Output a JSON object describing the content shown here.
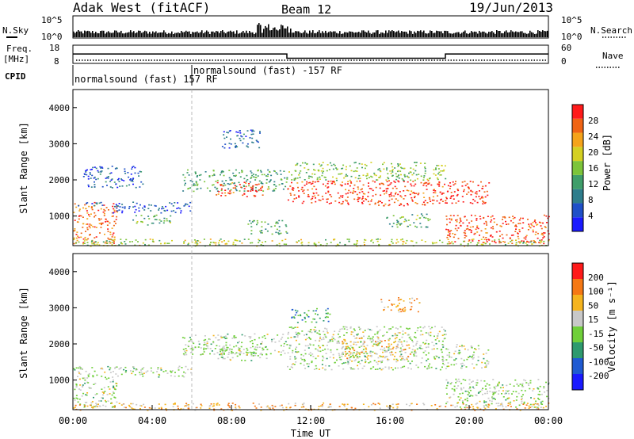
{
  "header": {
    "station": "Adak West (fitACF)",
    "beam": "Beam 12",
    "date": "19/Jun/2013"
  },
  "summary_panel": {
    "nsky_label": "N.Sky",
    "nsky_ticks": [
      "10^5",
      "10^0"
    ],
    "nsearch_label": "N.Search",
    "nsearch_ticks": [
      "10^5",
      "10^0"
    ],
    "freq_label_1": "Freq.",
    "freq_label_2": "[MHz]",
    "freq_ticks": [
      "18",
      "8"
    ],
    "nave_label": "Nave",
    "nave_ticks": [
      "60",
      "0"
    ],
    "cpid_label": "CPID",
    "cpid_segments": [
      {
        "label": "normalsound (fast) 157 RF",
        "start_hour": 0,
        "end_hour": 6
      },
      {
        "label": "normalsound (fast) -157 RF",
        "start_hour": 6,
        "end_hour": 24
      }
    ],
    "freq_series": [
      {
        "start_hour": 0,
        "end_hour": 10.8,
        "mhz": 13.5
      },
      {
        "start_hour": 10.8,
        "end_hour": 18.8,
        "mhz": 10.5
      },
      {
        "start_hour": 18.8,
        "end_hour": 24,
        "mhz": 13.5
      }
    ],
    "nave_level": 10
  },
  "chart_data": [
    {
      "type": "heatmap",
      "name": "power",
      "xlabel": "",
      "ylabel": "Slant Range [km]",
      "xlim": [
        0,
        24
      ],
      "ylim": [
        180,
        4500
      ],
      "yticks": [
        "1000",
        "2000",
        "3000",
        "4000"
      ],
      "colorbar_label": "Power [dB]",
      "colorbar_ticks": [
        "28",
        "24",
        "20",
        "16",
        "12",
        "8",
        "4"
      ],
      "colorbar_colors": [
        "#1a1aff",
        "#1f50c8",
        "#2e7d8c",
        "#3f9e6a",
        "#7cc43a",
        "#d4d022",
        "#f5a31a",
        "#f06414",
        "#ff1a1a"
      ],
      "features": [
        {
          "from": 0.0,
          "to": 2.2,
          "r_lo": 250,
          "r_hi": 1400,
          "level": 0.82
        },
        {
          "from": 0.0,
          "to": 2.0,
          "r_lo": 1300,
          "r_hi": 1400,
          "level": 0.25
        },
        {
          "from": 2.0,
          "to": 6.0,
          "r_lo": 1100,
          "r_hi": 1400,
          "level": 0.18
        },
        {
          "from": 3.0,
          "to": 5.0,
          "r_lo": 750,
          "r_hi": 1050,
          "level": 0.45
        },
        {
          "from": 0.5,
          "to": 3.5,
          "r_lo": 1800,
          "r_hi": 2400,
          "level": 0.2
        },
        {
          "from": 5.5,
          "to": 10.8,
          "r_lo": 1700,
          "r_hi": 2300,
          "level": 0.4
        },
        {
          "from": 7.2,
          "to": 9.8,
          "r_lo": 1550,
          "r_hi": 1950,
          "level": 0.9
        },
        {
          "from": 7.5,
          "to": 9.5,
          "r_lo": 2900,
          "r_hi": 3400,
          "level": 0.2
        },
        {
          "from": 8.8,
          "to": 10.8,
          "r_lo": 500,
          "r_hi": 900,
          "level": 0.4
        },
        {
          "from": 10.8,
          "to": 18.8,
          "r_lo": 1300,
          "r_hi": 2000,
          "level": 0.9
        },
        {
          "from": 10.8,
          "to": 18.8,
          "r_lo": 2000,
          "r_hi": 2500,
          "level": 0.5
        },
        {
          "from": 15.8,
          "to": 18.0,
          "r_lo": 700,
          "r_hi": 1100,
          "level": 0.42
        },
        {
          "from": 18.8,
          "to": 24.0,
          "r_lo": 250,
          "r_hi": 1050,
          "level": 0.88
        },
        {
          "from": 18.8,
          "to": 21.0,
          "r_lo": 1350,
          "r_hi": 2000,
          "level": 0.92
        },
        {
          "from": 0.0,
          "to": 24.0,
          "r_lo": 180,
          "r_hi": 380,
          "level": 0.55
        }
      ]
    },
    {
      "type": "heatmap",
      "name": "velocity",
      "xlabel": "Time UT",
      "ylabel": "Slant Range [km]",
      "xlim": [
        0,
        24
      ],
      "ylim": [
        180,
        4500
      ],
      "xticks": [
        "00:00",
        "04:00",
        "08:00",
        "12:00",
        "16:00",
        "20:00",
        "00:00"
      ],
      "yticks": [
        "1000",
        "2000",
        "3000",
        "4000"
      ],
      "colorbar_label": "Velocity [m s⁻¹]",
      "colorbar_ticks": [
        "200",
        "100",
        "50",
        "15",
        "-15",
        "-50",
        "-100",
        "-200"
      ],
      "colorbar_colors": [
        "#1a1aff",
        "#1f5ad2",
        "#2e9a6e",
        "#6fcf3a",
        "#c8c8c8",
        "#f5b41e",
        "#f57814",
        "#ff1a1a"
      ],
      "features": [
        {
          "from": 0.0,
          "to": 2.2,
          "r_lo": 250,
          "r_hi": 1400,
          "level": 0.5
        },
        {
          "from": 2.0,
          "to": 6.0,
          "r_lo": 1100,
          "r_hi": 1400,
          "level": 0.5
        },
        {
          "from": 5.5,
          "to": 10.8,
          "r_lo": 1700,
          "r_hi": 2300,
          "level": 0.5
        },
        {
          "from": 7.2,
          "to": 9.8,
          "r_lo": 1550,
          "r_hi": 1950,
          "level": 0.5
        },
        {
          "from": 10.8,
          "to": 18.8,
          "r_lo": 1300,
          "r_hi": 2500,
          "level": 0.5
        },
        {
          "from": 13.5,
          "to": 17.0,
          "r_lo": 1550,
          "r_hi": 2200,
          "level": 0.65
        },
        {
          "from": 15.5,
          "to": 17.5,
          "r_lo": 2900,
          "r_hi": 3300,
          "level": 0.72
        },
        {
          "from": 11.0,
          "to": 13.0,
          "r_lo": 2600,
          "r_hi": 3000,
          "level": 0.32
        },
        {
          "from": 18.8,
          "to": 24.0,
          "r_lo": 250,
          "r_hi": 1050,
          "level": 0.5
        },
        {
          "from": 18.8,
          "to": 21.0,
          "r_lo": 1350,
          "r_hi": 2000,
          "level": 0.5
        },
        {
          "from": 0.0,
          "to": 24.0,
          "r_lo": 180,
          "r_hi": 380,
          "level": 0.7
        }
      ]
    }
  ]
}
